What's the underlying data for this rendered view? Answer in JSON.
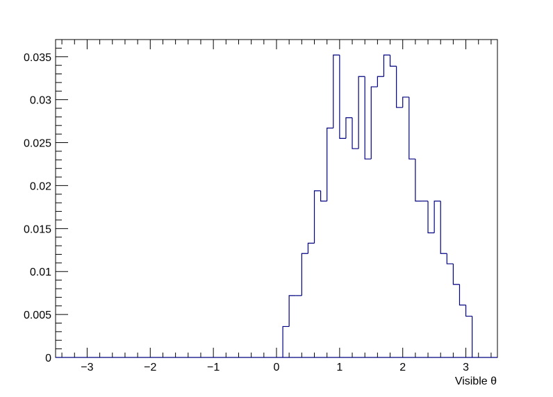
{
  "chart_data": {
    "type": "histogram",
    "title": "",
    "xlabel": "Visible  θ",
    "ylabel": "",
    "xlim": [
      -3.5,
      3.5
    ],
    "ylim": [
      0,
      0.037
    ],
    "x_ticks": [
      -3,
      -2,
      -1,
      0,
      1,
      2,
      3
    ],
    "x_tick_labels": [
      "−3",
      "−2",
      "−1",
      "0",
      "1",
      "2",
      "3"
    ],
    "y_ticks": [
      0,
      0.005,
      0.01,
      0.015,
      0.02,
      0.025,
      0.03,
      0.035
    ],
    "y_tick_labels": [
      "0",
      "0.005",
      "0.01",
      "0.015",
      "0.02",
      "0.025",
      "0.03",
      "0.035"
    ],
    "bin_width": 0.1,
    "line_color": "#000080",
    "grid": false,
    "bins": [
      {
        "x0": 0.1,
        "value": 0.0036
      },
      {
        "x0": 0.2,
        "value": 0.0072
      },
      {
        "x0": 0.3,
        "value": 0.0072
      },
      {
        "x0": 0.4,
        "value": 0.0121
      },
      {
        "x0": 0.5,
        "value": 0.0133
      },
      {
        "x0": 0.6,
        "value": 0.0194
      },
      {
        "x0": 0.7,
        "value": 0.0182
      },
      {
        "x0": 0.8,
        "value": 0.0267
      },
      {
        "x0": 0.9,
        "value": 0.0352
      },
      {
        "x0": 1.0,
        "value": 0.0255
      },
      {
        "x0": 1.1,
        "value": 0.0279
      },
      {
        "x0": 1.2,
        "value": 0.0243
      },
      {
        "x0": 1.3,
        "value": 0.0327
      },
      {
        "x0": 1.4,
        "value": 0.0231
      },
      {
        "x0": 1.5,
        "value": 0.0315
      },
      {
        "x0": 1.6,
        "value": 0.0327
      },
      {
        "x0": 1.7,
        "value": 0.0352
      },
      {
        "x0": 1.8,
        "value": 0.0339
      },
      {
        "x0": 1.9,
        "value": 0.0291
      },
      {
        "x0": 2.0,
        "value": 0.0303
      },
      {
        "x0": 2.1,
        "value": 0.0231
      },
      {
        "x0": 2.2,
        "value": 0.0182
      },
      {
        "x0": 2.3,
        "value": 0.0182
      },
      {
        "x0": 2.4,
        "value": 0.0145
      },
      {
        "x0": 2.5,
        "value": 0.0182
      },
      {
        "x0": 2.6,
        "value": 0.0121
      },
      {
        "x0": 2.7,
        "value": 0.0109
      },
      {
        "x0": 2.8,
        "value": 0.0085
      },
      {
        "x0": 2.9,
        "value": 0.0061
      },
      {
        "x0": 3.0,
        "value": 0.0048
      }
    ]
  }
}
